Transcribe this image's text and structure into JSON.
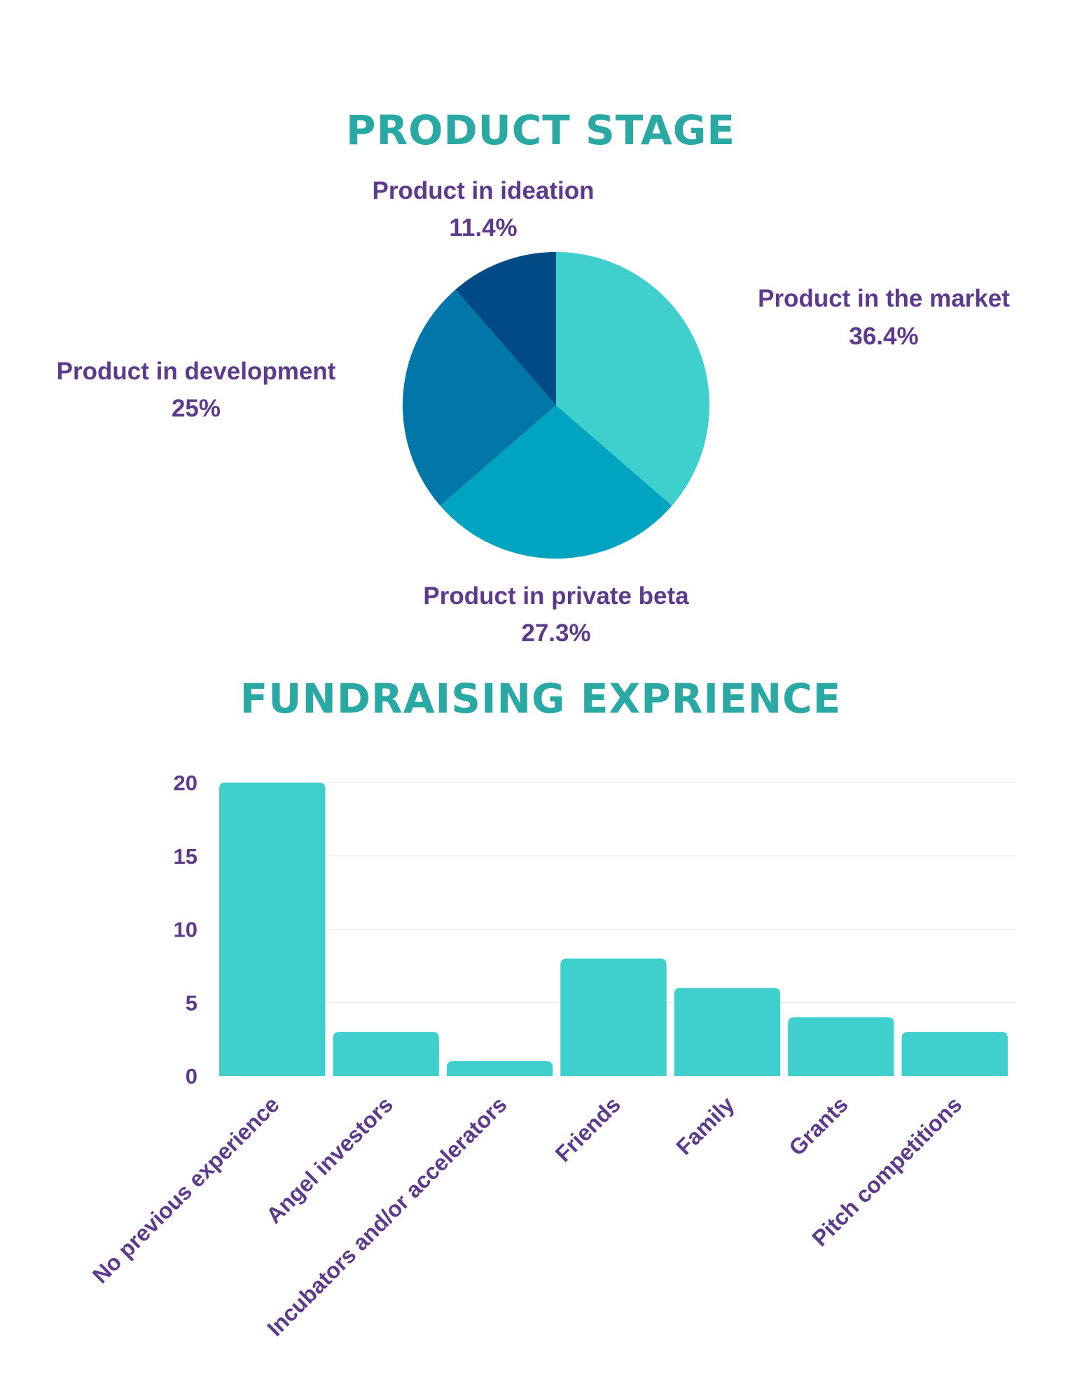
{
  "chart_data": [
    {
      "type": "pie",
      "title": "PRODUCT STAGE",
      "slices": [
        {
          "label": "Product in the market",
          "value_label": "36.4%",
          "value": 36.4,
          "color": "#3fcfcd"
        },
        {
          "label": "Product in private beta",
          "value_label": "27.3%",
          "value": 27.3,
          "color": "#00a3c0"
        },
        {
          "label": "Product in development",
          "value_label": "25%",
          "value": 25,
          "color": "#0077a8"
        },
        {
          "label": "Product in ideation",
          "value_label": "11.4%",
          "value": 11.4,
          "color": "#004b85"
        }
      ]
    },
    {
      "type": "bar",
      "title": "FUNDRAISING EXPRIENCE",
      "categories": [
        "No previous experience",
        "Angel investors",
        "Incubators and/or accelerators",
        "Friends",
        "Family",
        "Grants",
        "Pitch competitions"
      ],
      "values": [
        20,
        3,
        1,
        8,
        6,
        4,
        3
      ],
      "ylim": [
        0,
        20
      ],
      "yticks": [
        0,
        5,
        10,
        15,
        20
      ],
      "bar_color": "#3fcfcd",
      "grid": true
    }
  ]
}
